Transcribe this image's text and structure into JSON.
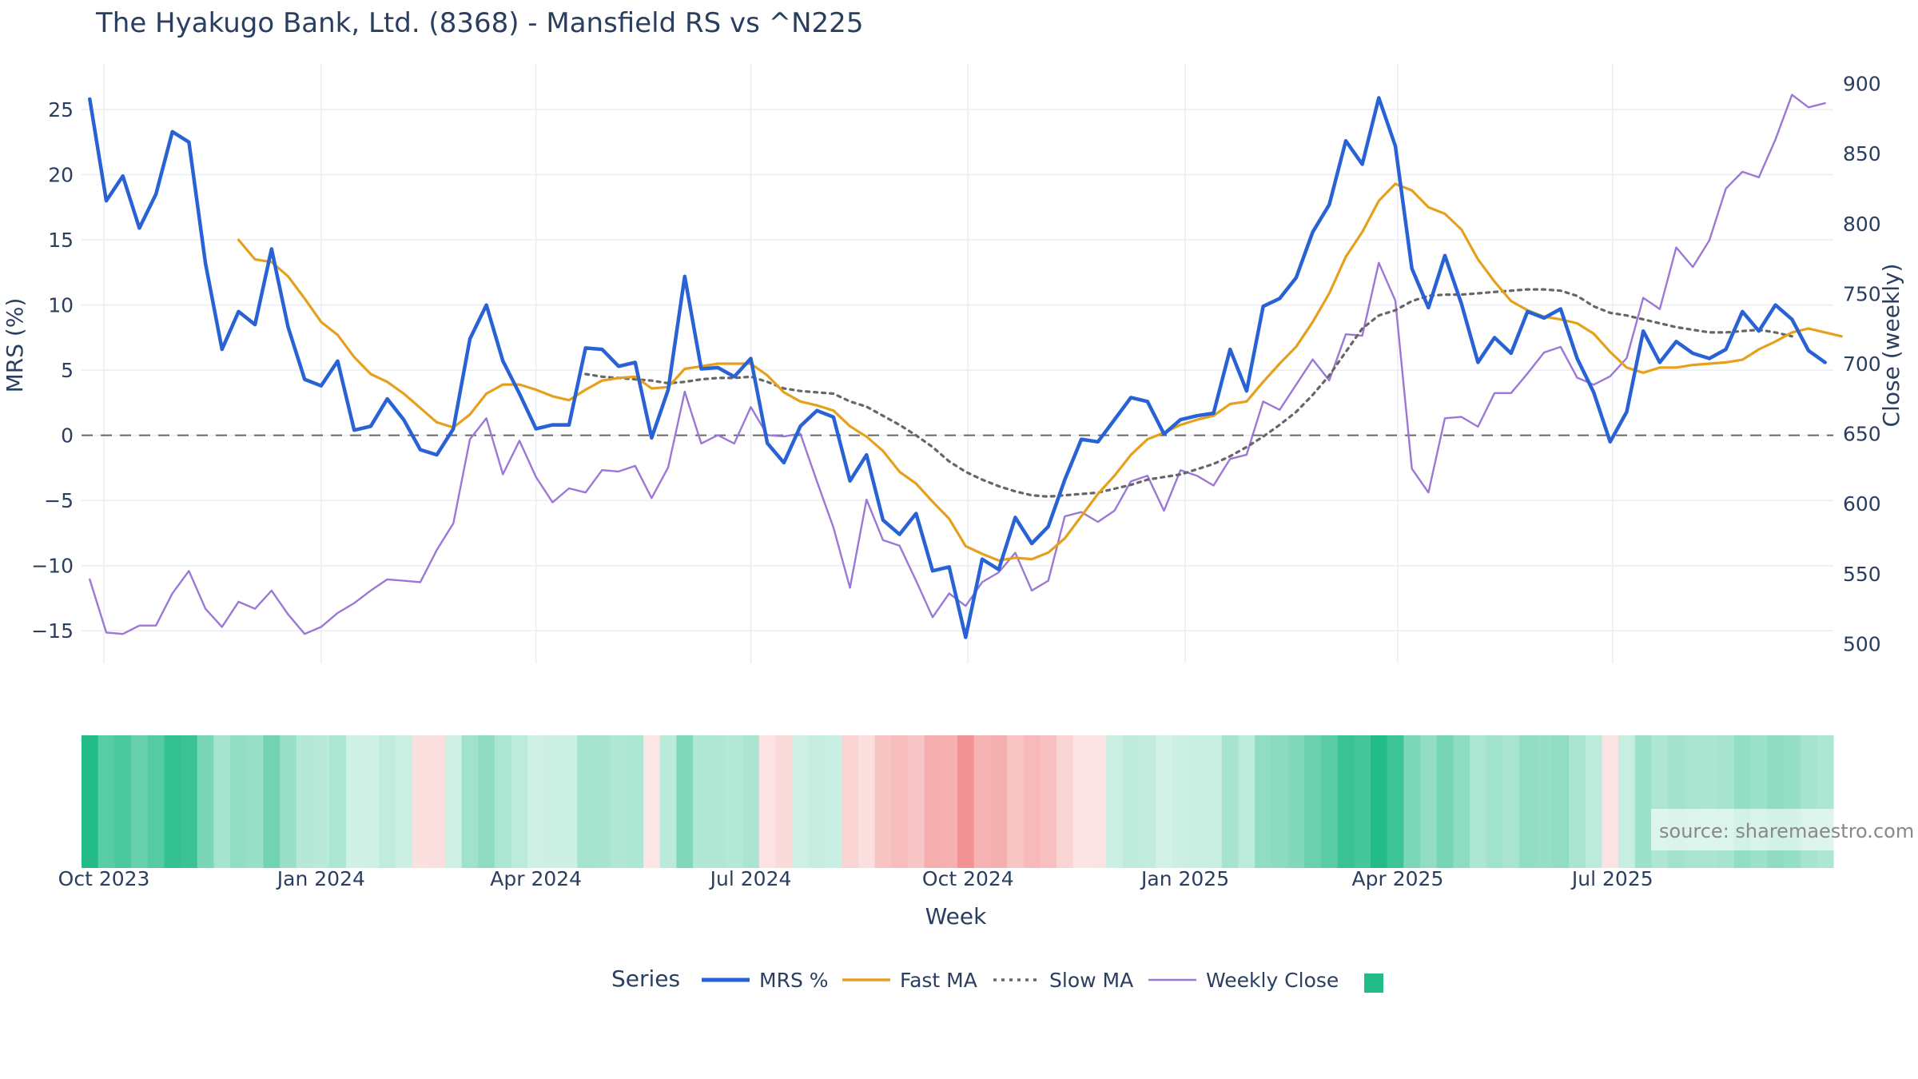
{
  "title": "The Hyakugo Bank, Ltd. (8368) - Mansfield RS vs ^N225",
  "source_note": "source: sharemaestro.com",
  "colors": {
    "mrs": "#2962d4",
    "fast_ma": "#e5a11d",
    "slow_ma": "#666666",
    "weekly_close": "#9b77d6",
    "heat_positive": "#22bb88",
    "heat_negative": "#f08080",
    "zero_line": "#666666",
    "grid": "#e9eef4"
  },
  "chart_data": {
    "type": "line",
    "title": "The Hyakugo Bank, Ltd. (8368) - Mansfield RS vs ^N225",
    "xlabel": "Week",
    "ylabel": "MRS (%)",
    "y2label": "Close (weekly)",
    "x_start": "2023-09-25",
    "x_step_days": 7,
    "x_ticks": [
      {
        "label": "Oct 2023",
        "date": "2023-10-01"
      },
      {
        "label": "Jan 2024",
        "date": "2024-01-01"
      },
      {
        "label": "Apr 2024",
        "date": "2024-04-01"
      },
      {
        "label": "Jul 2024",
        "date": "2024-07-01"
      },
      {
        "label": "Oct 2024",
        "date": "2024-10-01"
      },
      {
        "label": "Jan 2025",
        "date": "2025-01-01"
      },
      {
        "label": "Apr 2025",
        "date": "2025-04-01"
      },
      {
        "label": "Jul 2025",
        "date": "2025-07-01"
      }
    ],
    "ylim": [
      -17.5,
      28.5
    ],
    "y_ticks": [
      25,
      20,
      15,
      10,
      5,
      0,
      -5,
      -10,
      -15
    ],
    "y2lim": [
      486,
      914
    ],
    "y2_ticks": [
      900,
      850,
      800,
      750,
      700,
      650,
      600,
      550,
      500
    ],
    "zero_line": 0,
    "legend_title": "Series",
    "legend_position": "bottom",
    "grid": true,
    "series": [
      {
        "name": "MRS %",
        "axis": "left",
        "values": [
          25.8,
          18.0,
          19.9,
          15.9,
          18.5,
          23.3,
          22.5,
          13.2,
          6.6,
          9.5,
          8.5,
          14.3,
          8.3,
          4.3,
          3.8,
          5.7,
          0.4,
          0.7,
          2.8,
          1.2,
          -1.1,
          -1.5,
          0.5,
          7.4,
          10.0,
          5.7,
          3.2,
          0.5,
          0.8,
          0.8,
          6.7,
          6.6,
          5.3,
          5.6,
          -0.2,
          3.5,
          12.2,
          5.1,
          5.2,
          4.5,
          5.9,
          -0.6,
          -2.1,
          0.7,
          1.9,
          1.4,
          -3.5,
          -1.5,
          -6.5,
          -7.6,
          -6.0,
          -10.4,
          -10.1,
          -15.5,
          -9.5,
          -10.3,
          -6.3,
          -8.3,
          -7.0,
          -3.4,
          -0.3,
          -0.5,
          1.2,
          2.9,
          2.6,
          0.1,
          1.2,
          1.5,
          1.7,
          6.6,
          3.4,
          9.9,
          10.5,
          12.1,
          15.6,
          17.7,
          22.6,
          20.8,
          25.9,
          22.2,
          12.8,
          9.8,
          13.8,
          10.1,
          5.6,
          7.5,
          6.3,
          9.5,
          9.0,
          9.7,
          5.9,
          3.3,
          -0.5,
          1.8,
          8.0,
          5.6,
          7.2,
          6.3,
          5.9,
          6.6,
          9.5,
          8.0,
          10.0,
          8.9,
          6.5,
          5.6
        ]
      },
      {
        "name": "Fast MA",
        "axis": "left",
        "start_index": 9,
        "values": [
          15.0,
          13.5,
          13.3,
          12.2,
          10.5,
          8.7,
          7.7,
          6.0,
          4.7,
          4.1,
          3.2,
          2.1,
          1.0,
          0.6,
          1.6,
          3.2,
          3.9,
          3.9,
          3.5,
          3.0,
          2.7,
          3.5,
          4.2,
          4.4,
          4.5,
          3.6,
          3.7,
          5.1,
          5.3,
          5.5,
          5.5,
          5.5,
          4.6,
          3.3,
          2.6,
          2.3,
          1.9,
          0.7,
          -0.1,
          -1.2,
          -2.8,
          -3.7,
          -5.1,
          -6.4,
          -8.5,
          -9.1,
          -9.6,
          -9.4,
          -9.5,
          -9.0,
          -7.9,
          -6.2,
          -4.5,
          -3.1,
          -1.5,
          -0.3,
          0.2,
          0.8,
          1.2,
          1.5,
          2.4,
          2.6,
          4.1,
          5.5,
          6.8,
          8.7,
          10.9,
          13.7,
          15.6,
          18.0,
          19.3,
          18.8,
          17.5,
          17.0,
          15.8,
          13.5,
          11.8,
          10.3,
          9.6,
          9.1,
          8.9,
          8.6,
          7.8,
          6.4,
          5.2,
          4.8,
          5.2,
          5.2,
          5.4,
          5.5,
          5.6,
          5.8,
          6.6,
          7.2,
          7.9,
          8.2,
          7.9,
          7.6
        ]
      },
      {
        "name": "Slow MA",
        "axis": "left",
        "start_index": 30,
        "values": [
          4.7,
          4.5,
          4.4,
          4.3,
          4.2,
          4.0,
          4.1,
          4.3,
          4.4,
          4.4,
          4.5,
          4.1,
          3.6,
          3.4,
          3.3,
          3.2,
          2.6,
          2.2,
          1.5,
          0.8,
          0.0,
          -0.9,
          -2.0,
          -2.8,
          -3.4,
          -3.9,
          -4.3,
          -4.6,
          -4.7,
          -4.6,
          -4.5,
          -4.4,
          -4.1,
          -3.8,
          -3.4,
          -3.2,
          -3.0,
          -2.6,
          -2.2,
          -1.6,
          -0.9,
          -0.1,
          0.8,
          1.8,
          3.1,
          4.6,
          6.4,
          8.2,
          9.2,
          9.6,
          10.3,
          10.7,
          10.8,
          10.8,
          10.9,
          11.0,
          11.1,
          11.2,
          11.2,
          11.1,
          10.7,
          9.9,
          9.4,
          9.2,
          8.9,
          8.6,
          8.3,
          8.1,
          7.9,
          7.9,
          8.0,
          8.1,
          7.9,
          7.6
        ]
      },
      {
        "name": "Weekly Close",
        "axis": "right",
        "values": [
          546,
          508,
          507,
          513,
          513,
          536,
          552,
          525,
          512,
          530,
          525,
          538,
          521,
          507,
          512,
          522,
          529,
          538,
          546,
          545,
          544,
          567,
          586,
          646,
          661,
          621,
          645,
          619,
          601,
          611,
          608,
          624,
          623,
          627,
          604,
          626,
          680,
          643,
          649,
          643,
          669,
          649,
          648,
          650,
          616,
          583,
          540,
          603,
          574,
          570,
          545,
          519,
          536,
          527,
          544,
          551,
          565,
          538,
          545,
          591,
          594,
          587,
          595,
          616,
          620,
          595,
          624,
          620,
          613,
          632,
          635,
          673,
          667,
          685,
          703,
          688,
          721,
          720,
          772,
          745,
          625,
          608,
          661,
          662,
          655,
          679,
          679,
          693,
          708,
          712,
          690,
          685,
          691,
          704,
          747,
          739,
          783,
          769,
          788,
          825,
          837,
          833,
          860,
          892,
          883,
          886
        ]
      }
    ],
    "heat_strip": {
      "name": "MRS heat",
      "values": [
        25.8,
        18.0,
        19.9,
        15.9,
        18.5,
        23.3,
        22.5,
        13.2,
        6.6,
        9.5,
        8.5,
        14.3,
        8.3,
        4.3,
        3.8,
        5.7,
        0.4,
        0.7,
        2.8,
        1.2,
        -1.1,
        -1.5,
        0.5,
        7.4,
        10.0,
        5.7,
        3.2,
        0.5,
        0.8,
        0.8,
        6.7,
        6.6,
        5.3,
        5.6,
        -0.2,
        3.5,
        12.2,
        5.1,
        5.2,
        4.5,
        5.9,
        -0.6,
        -2.1,
        0.7,
        1.9,
        1.4,
        -3.5,
        -1.5,
        -6.5,
        -7.6,
        -6.0,
        -10.4,
        -10.1,
        -15.5,
        -9.5,
        -10.3,
        -6.3,
        -8.3,
        -7.0,
        -3.4,
        -0.3,
        -0.5,
        1.2,
        2.9,
        2.6,
        0.1,
        1.2,
        1.5,
        1.7,
        6.6,
        3.4,
        9.9,
        10.5,
        12.1,
        15.6,
        17.7,
        22.6,
        20.8,
        25.9,
        22.2,
        12.8,
        9.8,
        13.8,
        10.1,
        5.6,
        7.5,
        6.3,
        9.5,
        9.0,
        9.7,
        5.9,
        3.3,
        -0.5,
        1.8,
        8.0,
        5.6,
        7.2,
        6.3,
        5.9,
        6.6,
        9.5,
        8.0,
        10.0,
        8.9,
        6.5,
        5.6
      ]
    }
  }
}
